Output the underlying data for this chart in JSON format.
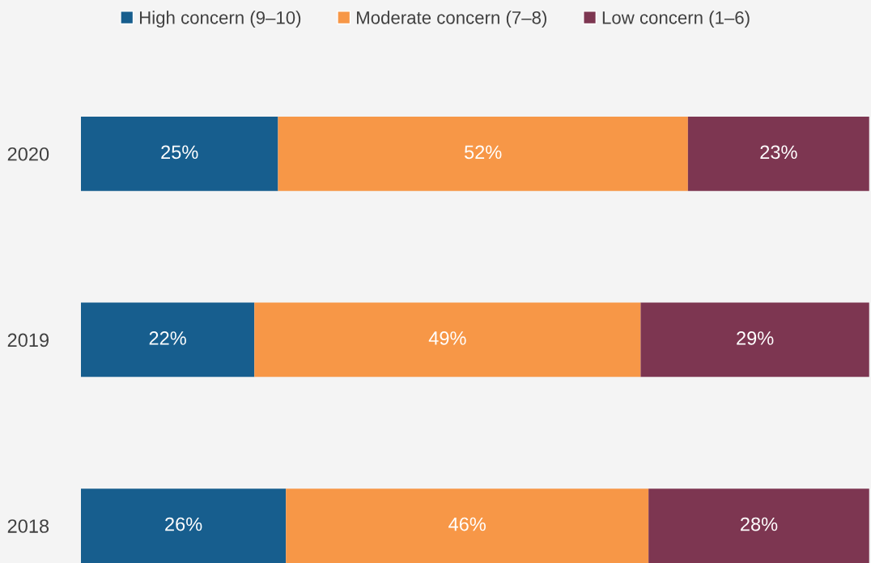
{
  "chart_data": {
    "type": "bar",
    "orientation": "horizontal",
    "stacked": true,
    "categories": [
      "2020",
      "2019",
      "2018"
    ],
    "series": [
      {
        "name": "High concern (9–10)",
        "color": "#175e8e",
        "values": [
          25,
          22,
          26
        ],
        "value_labels": [
          "25%",
          "22%",
          "26%"
        ]
      },
      {
        "name": "Moderate concern (7–8)",
        "color": "#f79747",
        "values": [
          52,
          49,
          46
        ],
        "value_labels": [
          "52%",
          "49%",
          "46%"
        ]
      },
      {
        "name": "Low concern (1–6)",
        "color": "#7d3651",
        "values": [
          23,
          29,
          28
        ],
        "value_labels": [
          "23%",
          "29%",
          "28%"
        ]
      }
    ],
    "legend": "top",
    "tick_labels": "y",
    "grid": false
  }
}
